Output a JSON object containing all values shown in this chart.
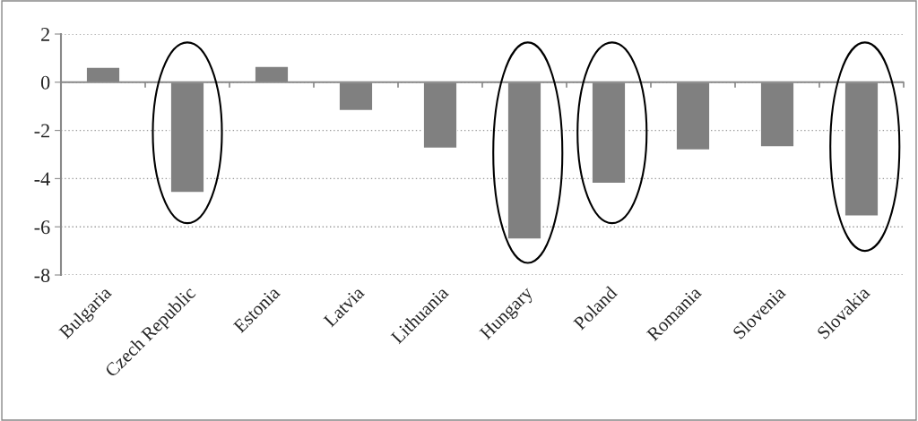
{
  "chart_data": {
    "type": "bar",
    "categories": [
      "Bulgaria",
      "Czech Republic",
      "Estonia",
      "Latvia",
      "Lithuania",
      "Hungary",
      "Poland",
      "Romania",
      "Slovenia",
      "Slovakia"
    ],
    "values": [
      0.62,
      -4.58,
      0.66,
      -1.18,
      -2.74,
      -6.51,
      -4.2,
      -2.81,
      -2.68,
      -5.55
    ],
    "color": "#808080",
    "ylim": [
      -8,
      2
    ],
    "yticks": [
      -8,
      -6,
      -4,
      -2,
      0,
      2
    ],
    "grid": "y"
  }
}
